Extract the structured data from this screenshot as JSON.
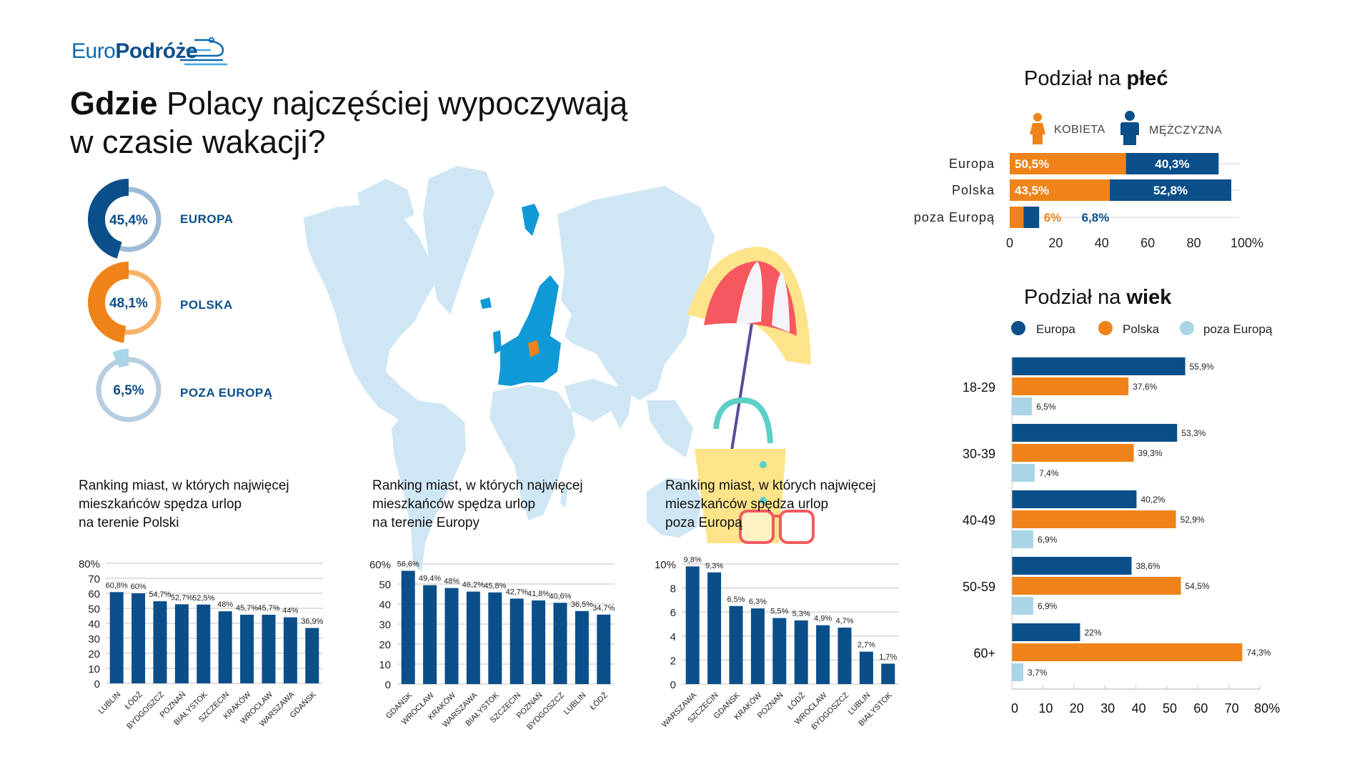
{
  "logo": {
    "part1": "Euro",
    "part2": "Podróże"
  },
  "header": {
    "title_bold": "Gdzie",
    "title_rest": " Polacy najczęściej wypoczywają",
    "title_line2": "w czasie wakacji?"
  },
  "colors": {
    "navy": "#0b4f8a",
    "orange": "#ef8319",
    "light_blue": "#a9d5e6",
    "map": "#cfe6f4",
    "europe": "#0f9ad7"
  },
  "donuts": [
    {
      "label": "EUROPA",
      "value_label": "45,4%",
      "value": 45.4,
      "color": "#0b4f8a",
      "ring": "#9dbbd6"
    },
    {
      "label": "POLSKA",
      "value_label": "48,1%",
      "value": 48.1,
      "color": "#ef8319",
      "ring": "#f7b36a"
    },
    {
      "label": "POZA EUROPĄ",
      "value_label": "6,5%",
      "value": 6.5,
      "color": "#a9d5e6",
      "ring": "#b8cde0"
    }
  ],
  "chart_titles": [
    [
      "Ranking miast, w których najwięcej",
      "mieszkańców spędza urlop",
      "na terenie Polski"
    ],
    [
      "Ranking miast, w których najwięcej",
      "mieszkańców spędza urlop",
      "na terenie Europy"
    ],
    [
      "Ranking miast, w których najwięcej",
      "mieszkańców spędza urlop",
      "poza Europą"
    ]
  ],
  "gender": {
    "title_regular": "Podział na ",
    "title_bold": "płeć",
    "legend": [
      "KOBIETA",
      "MĘŻCZYZNA"
    ]
  },
  "age": {
    "title_regular": "Podział na ",
    "title_bold": "wiek"
  },
  "chart_data": [
    {
      "type": "bar",
      "categories": [
        "LUBLIN",
        "ŁÓDŹ",
        "BYDGOSZCZ",
        "POZNAŃ",
        "BIAŁYSTOK",
        "SZCZECIN",
        "KRAKÓW",
        "WROCŁAW",
        "WARSZAWA",
        "GDAŃSK"
      ],
      "values": [
        60.8,
        60,
        54.7,
        52.7,
        52.5,
        48,
        45.7,
        45.7,
        44,
        36.9
      ],
      "data_labels": [
        "60,8%",
        "60%",
        "54,7%",
        "52,7%",
        "52,5%",
        "48%",
        "45,7%",
        "45,7%",
        "44%",
        "36,9%"
      ],
      "yticks": [
        "0",
        "10",
        "20",
        "30",
        "40",
        "50",
        "60",
        "70",
        "80%"
      ],
      "ylim": [
        0,
        80
      ],
      "grid": true
    },
    {
      "type": "bar",
      "categories": [
        "GDAŃSK",
        "WROCŁAW",
        "KRAKÓW",
        "WARSZAWA",
        "BIAŁYSTOK",
        "SZCZECIN",
        "POZNAŃ",
        "BYDGOSZCZ",
        "LUBLIN",
        "ŁÓDŹ"
      ],
      "values": [
        56.6,
        49.4,
        48,
        46.2,
        45.8,
        42.7,
        41.8,
        40.6,
        36.5,
        34.7
      ],
      "data_labels": [
        "56,6%",
        "49,4%",
        "48%",
        "46,2%",
        "45,8%",
        "42,7%",
        "41,8%",
        "40,6%",
        "36,5%",
        "34,7%"
      ],
      "yticks": [
        "0",
        "10",
        "20",
        "30",
        "40",
        "50",
        "60%"
      ],
      "ylim": [
        0,
        60
      ],
      "grid": true
    },
    {
      "type": "bar",
      "categories": [
        "WARSZAWA",
        "SZCZECIN",
        "GDAŃSK",
        "KRAKÓW",
        "POZNAŃ",
        "ŁÓDŹ",
        "WROCŁAW",
        "BYDGOSZCZ",
        "LUBLIN",
        "BIAŁYSTOK"
      ],
      "values": [
        9.8,
        9.3,
        6.5,
        6.3,
        5.5,
        5.3,
        4.9,
        4.7,
        2.7,
        1.7
      ],
      "data_labels": [
        "9,8%",
        "9,3%",
        "6,5%",
        "6,3%",
        "5,5%",
        "5,3%",
        "4,9%",
        "4,7%",
        "2,7%",
        "1,7%"
      ],
      "yticks": [
        "0",
        "2",
        "4",
        "6",
        "8",
        "10%"
      ],
      "ylim": [
        0,
        10
      ],
      "grid": true
    },
    {
      "type": "bar",
      "orientation": "horizontal-stacked",
      "categories": [
        "Europa",
        "Polska",
        "poza Europą"
      ],
      "series": [
        {
          "name": "KOBIETA",
          "values": [
            50.5,
            43.5,
            6
          ],
          "data_labels": [
            "50,5%",
            "43,5%",
            "6%"
          ],
          "color": "#ef8319"
        },
        {
          "name": "MĘŻCZYZNA",
          "values": [
            40.3,
            52.8,
            6.8
          ],
          "data_labels": [
            "40,3%",
            "52,8%",
            "6,8%"
          ],
          "color": "#0b4f8a"
        }
      ],
      "xticks": [
        "0",
        "20",
        "40",
        "60",
        "80",
        "100%"
      ],
      "xlim": [
        0,
        100
      ],
      "legend": "top"
    },
    {
      "type": "bar",
      "orientation": "horizontal-grouped",
      "categories": [
        "18-29",
        "30-39",
        "40-49",
        "50-59",
        "60+"
      ],
      "series": [
        {
          "name": "Europa",
          "values": [
            55.9,
            53.3,
            40.2,
            38.6,
            22
          ],
          "data_labels": [
            "55,9%",
            "53,3%",
            "40,2%",
            "38,6%",
            "22%"
          ],
          "color": "#0b4f8a"
        },
        {
          "name": "Polska",
          "values": [
            37.6,
            39.3,
            52.9,
            54.5,
            74.3
          ],
          "data_labels": [
            "37,6%",
            "39,3%",
            "52,9%",
            "54,5%",
            "74,3%"
          ],
          "color": "#ef8319"
        },
        {
          "name": "poza Europą",
          "values": [
            6.5,
            7.4,
            6.9,
            6.9,
            3.7
          ],
          "data_labels": [
            "6,5%",
            "7,4%",
            "6,9%",
            "6,9%",
            "3,7%"
          ],
          "color": "#a9d5e6"
        }
      ],
      "xticks": [
        "0",
        "10",
        "20",
        "30",
        "40",
        "50",
        "60",
        "70",
        "80%"
      ],
      "xlim": [
        0,
        80
      ],
      "legend": "top"
    }
  ]
}
